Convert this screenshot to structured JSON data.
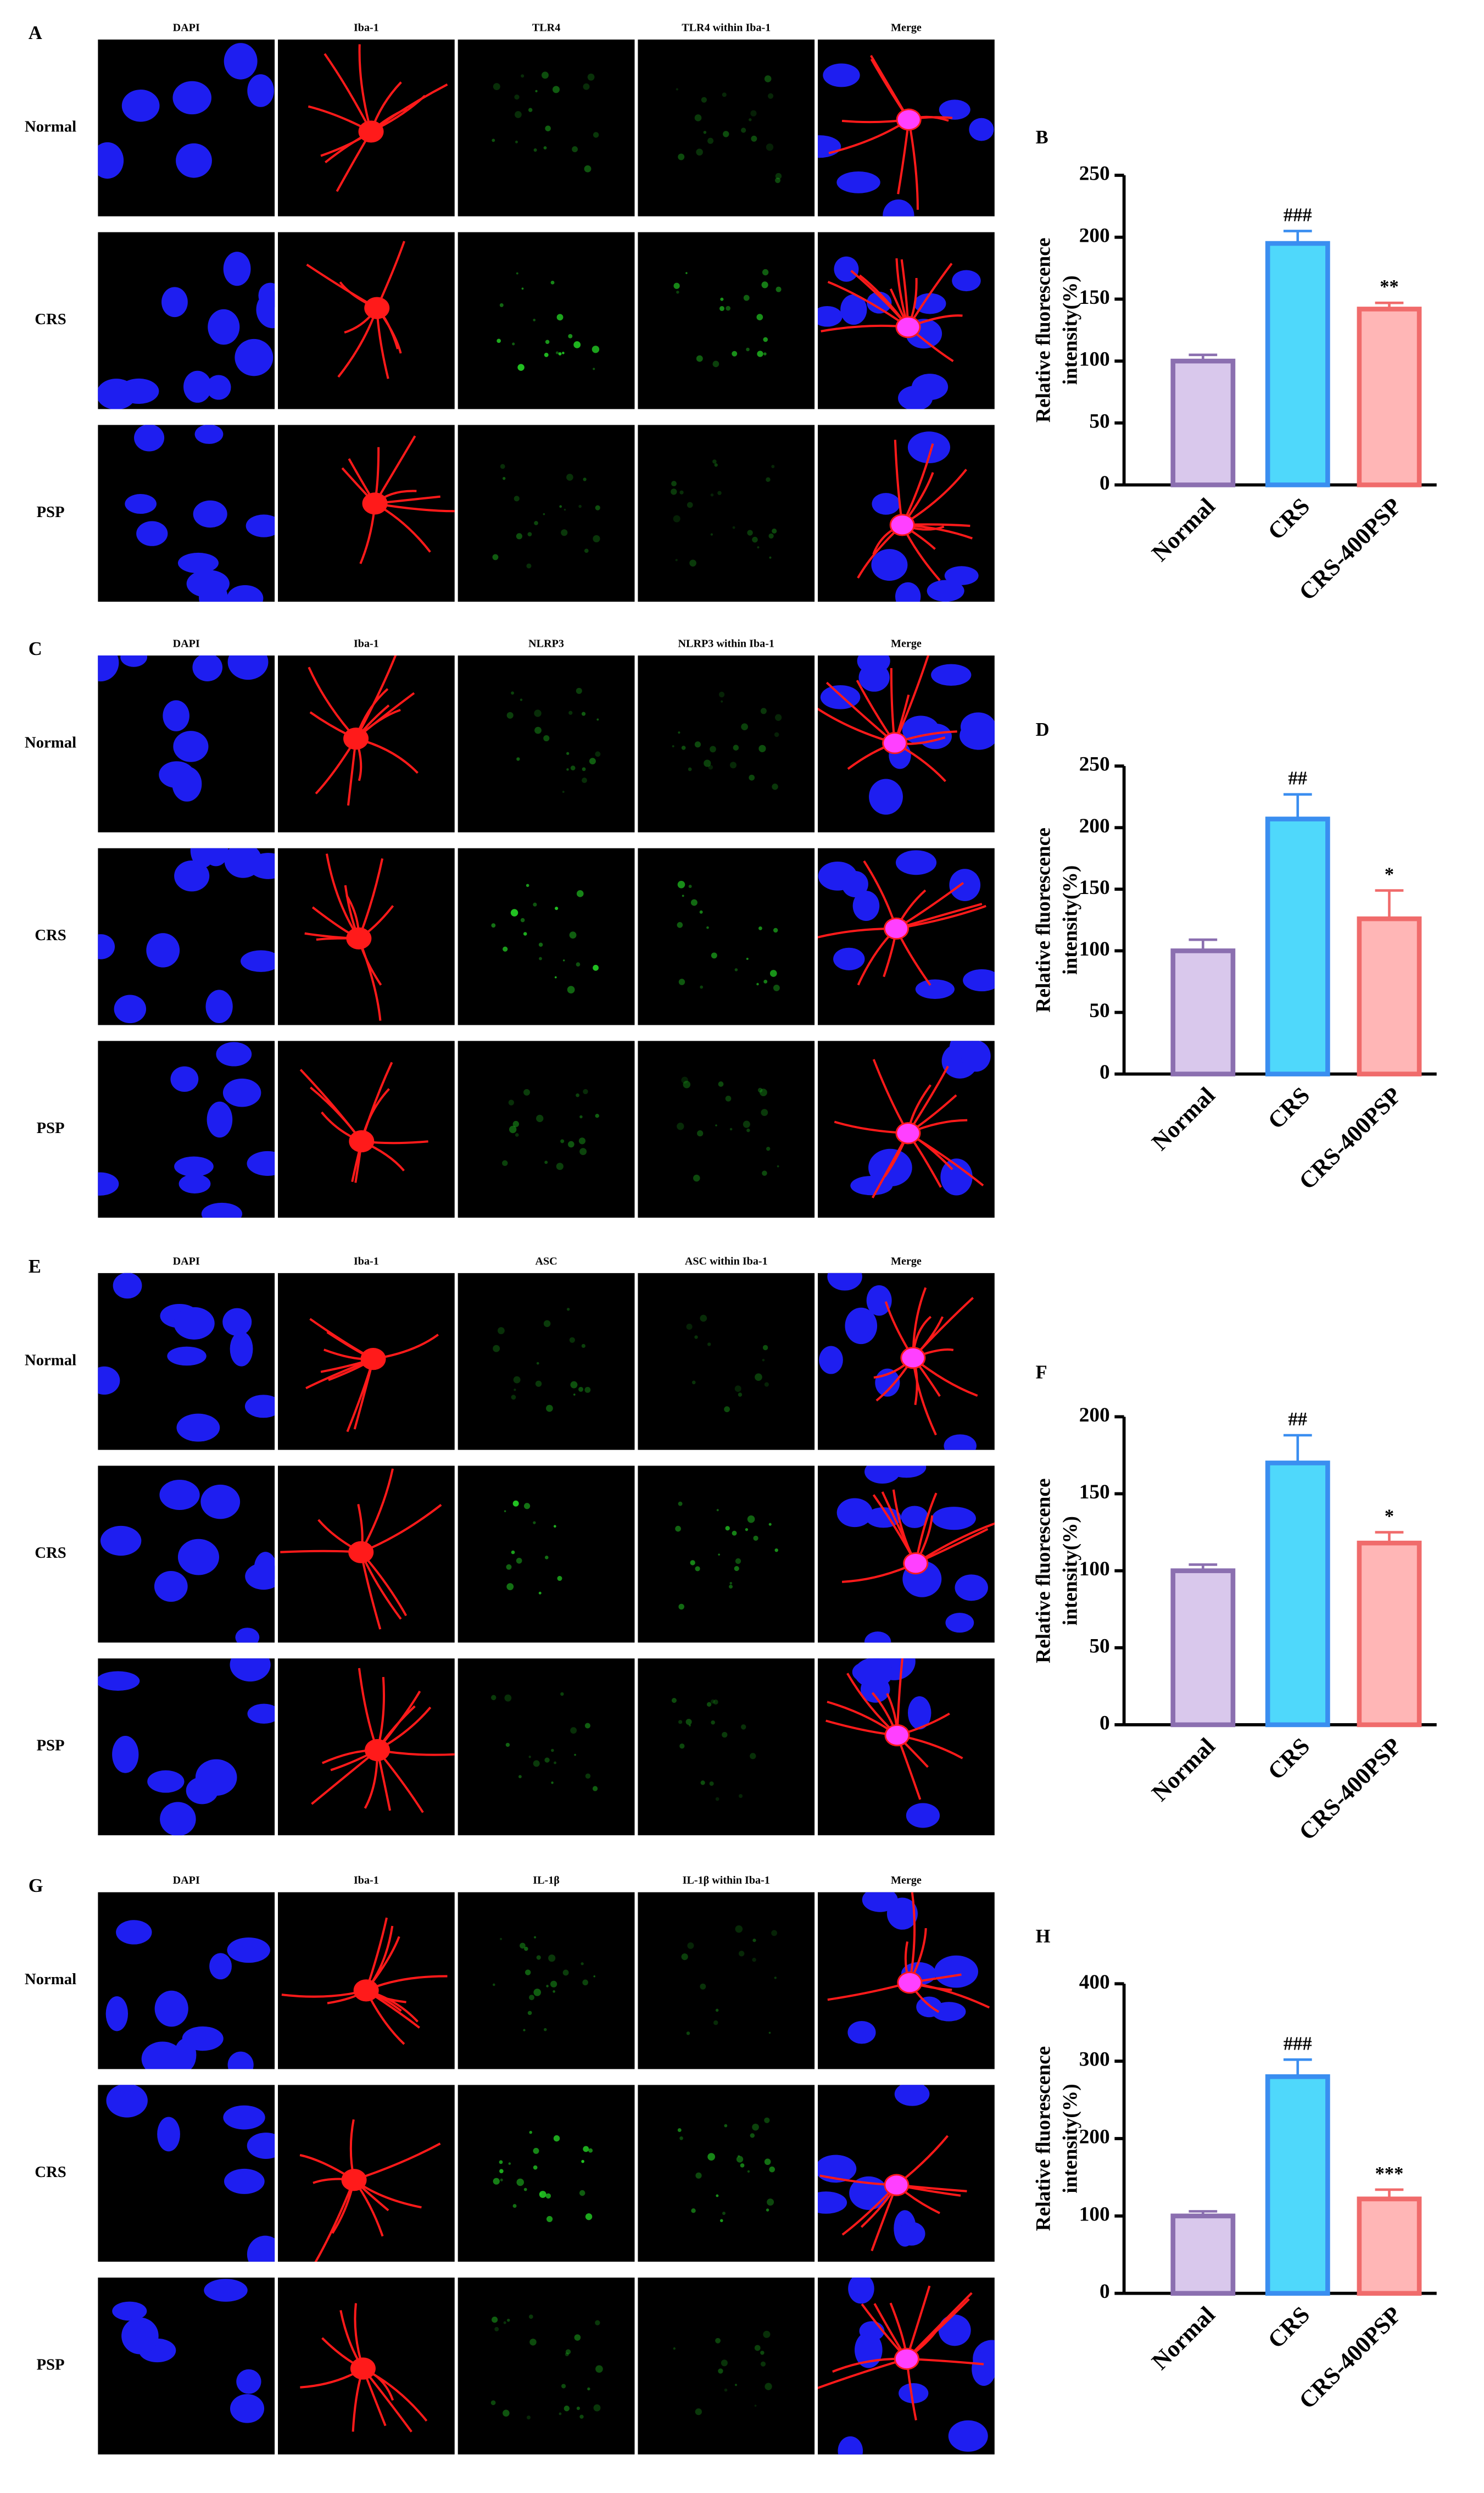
{
  "image_panels": [
    {
      "label": "A",
      "columns": [
        "DAPI",
        "Iba-1",
        "TLR4",
        "TLR4 within Iba-1",
        "Merge"
      ],
      "rows": [
        "Normal",
        "CRS",
        "PSP"
      ]
    },
    {
      "label": "C",
      "columns": [
        "DAPI",
        "Iba-1",
        "NLRP3",
        "NLRP3 within Iba-1",
        "Merge"
      ],
      "rows": [
        "Normal",
        "CRS",
        "PSP"
      ]
    },
    {
      "label": "E",
      "columns": [
        "DAPI",
        "Iba-1",
        "ASC",
        "ASC within Iba-1",
        "Merge"
      ],
      "rows": [
        "Normal",
        "CRS",
        "PSP"
      ]
    },
    {
      "label": "G",
      "columns": [
        "DAPI",
        "Iba-1",
        "IL-1β",
        "IL-1β within Iba-1",
        "Merge"
      ],
      "rows": [
        "Normal",
        "CRS",
        "PSP"
      ]
    }
  ],
  "chart_data": [
    {
      "type": "bar",
      "label": "B",
      "ylabel": [
        "Relative fluorescence",
        "intensity(%)"
      ],
      "categories": [
        "Normal",
        "CRS",
        "CRS-400PSP"
      ],
      "values": [
        100,
        195,
        142
      ],
      "errors": [
        5,
        10,
        5
      ],
      "annotations": [
        null,
        "###",
        "**"
      ],
      "colors": [
        "#d9c8ec",
        "#4fd8fb",
        "#ffb6b6"
      ],
      "edge_colors": [
        "#8b6fb0",
        "#3a8ef0",
        "#f06b6b"
      ],
      "ylim": [
        0,
        250
      ],
      "yticks": [
        0,
        50,
        100,
        150,
        200,
        250
      ]
    },
    {
      "type": "bar",
      "label": "D",
      "ylabel": [
        "Relative fluorescence",
        "intensity(%)"
      ],
      "categories": [
        "Normal",
        "CRS",
        "CRS-400PSP"
      ],
      "values": [
        100,
        207,
        126
      ],
      "errors": [
        9,
        20,
        23
      ],
      "annotations": [
        null,
        "##",
        "*"
      ],
      "colors": [
        "#d9c8ec",
        "#4fd8fb",
        "#ffb6b6"
      ],
      "edge_colors": [
        "#8b6fb0",
        "#3a8ef0",
        "#f06b6b"
      ],
      "ylim": [
        0,
        250
      ],
      "yticks": [
        0,
        50,
        100,
        150,
        200,
        250
      ]
    },
    {
      "type": "bar",
      "label": "F",
      "ylabel": [
        "Relative fluorescence",
        "intensity(%)"
      ],
      "categories": [
        "Normal",
        "CRS",
        "CRS-400PSP"
      ],
      "values": [
        100,
        170,
        118
      ],
      "errors": [
        4,
        18,
        7
      ],
      "annotations": [
        null,
        "##",
        "*"
      ],
      "colors": [
        "#d9c8ec",
        "#4fd8fb",
        "#ffb6b6"
      ],
      "edge_colors": [
        "#8b6fb0",
        "#3a8ef0",
        "#f06b6b"
      ],
      "ylim": [
        0,
        200
      ],
      "yticks": [
        0,
        50,
        100,
        150,
        200
      ]
    },
    {
      "type": "bar",
      "label": "H",
      "ylabel": [
        "Relative fluorescence",
        "intensity(%)"
      ],
      "categories": [
        "Normal",
        "CRS",
        "CRS-400PSP"
      ],
      "values": [
        100,
        280,
        122
      ],
      "errors": [
        6,
        22,
        12
      ],
      "annotations": [
        null,
        "###",
        "***"
      ],
      "colors": [
        "#d9c8ec",
        "#4fd8fb",
        "#ffb6b6"
      ],
      "edge_colors": [
        "#8b6fb0",
        "#3a8ef0",
        "#f06b6b"
      ],
      "ylim": [
        0,
        400
      ],
      "yticks": [
        0,
        100,
        200,
        300,
        400
      ]
    }
  ]
}
